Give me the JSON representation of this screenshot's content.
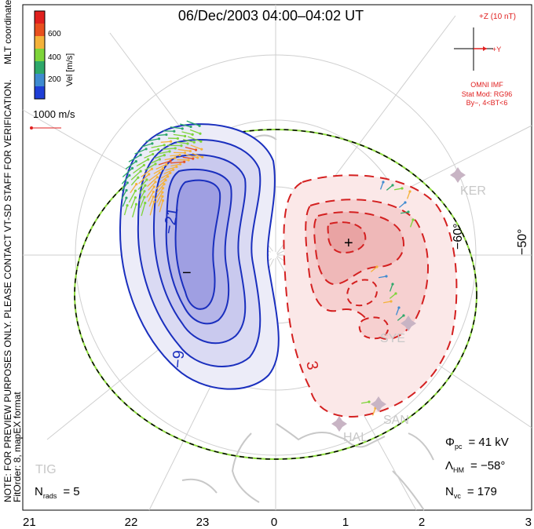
{
  "title": "06/Dec/2003 04:00–04:02 UT",
  "side_note": {
    "line1": "NOTE: FOR PREVIEW PURPOSES ONLY. PLEASE CONTACT VT-SD STAFF FOR VERIFICATION.",
    "line2": "FitOrder: 8, mapEX format",
    "line3": "MLT coordinates"
  },
  "colorbar": {
    "label": "Vel [m/s]",
    "ticks": [
      "600",
      "400",
      "200"
    ],
    "colors": [
      "#1f3fd6",
      "#3f8bd0",
      "#2ea86a",
      "#7ed43a",
      "#f4b23a",
      "#e8501e",
      "#e0201e"
    ]
  },
  "reference_vector": {
    "label": "1000 m/s",
    "color": "#e02020"
  },
  "imf": {
    "scale_label": "+Z (10 nT)",
    "y_label": "+Y",
    "source": "OMNI IMF",
    "model": "Stat Mod: RG96",
    "condition": "By−, 4<BT<6",
    "color": "#e02020"
  },
  "grid": {
    "lat_labels": [
      "−60°",
      "−50°"
    ],
    "mlt_ticks": [
      "21",
      "22",
      "23",
      "0",
      "1",
      "2",
      "3"
    ]
  },
  "stations": [
    "KER",
    "SYE",
    "SAN",
    "HAL",
    "TIG"
  ],
  "potential": {
    "neg_contour_labels": [
      "−21",
      "−9"
    ],
    "pos_contour_labels": [
      "3"
    ],
    "min_marker": "−",
    "max_marker": "+",
    "neg_color": "#1a2fbe",
    "pos_color": "#d42020"
  },
  "stats": {
    "phi_symbol": "Φ",
    "phi_sub": "pc",
    "phi_value": "= 41 kV",
    "lambda_symbol": "Λ",
    "lambda_sub": "HM",
    "lambda_value": "= −58°",
    "nvc_symbol": "N",
    "nvc_sub": "vc",
    "nvc_value": "= 179",
    "nrads_symbol": "N",
    "nrads_sub": "rads",
    "nrads_value": "= 5"
  }
}
